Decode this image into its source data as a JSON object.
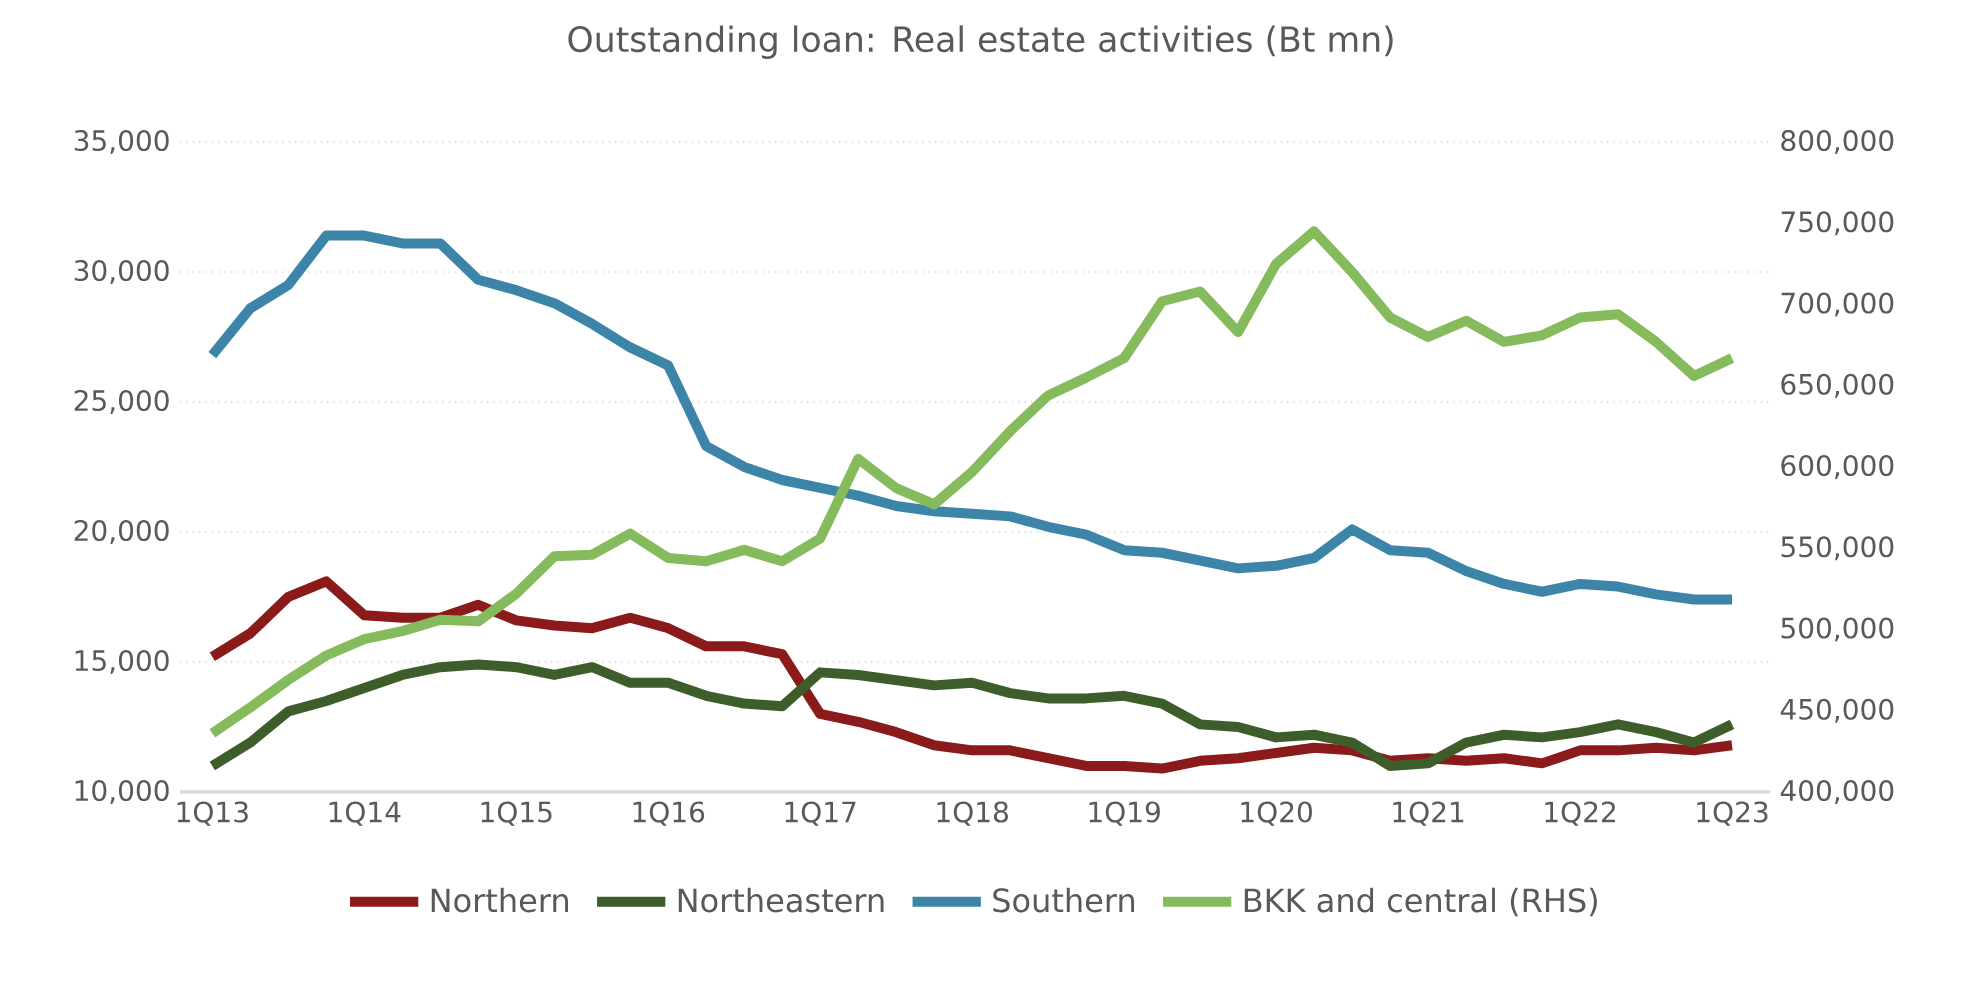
{
  "chart_data": {
    "type": "line",
    "title": "Outstanding loan: Real estate activities (Bt mn)",
    "categories": [
      "1Q13",
      null,
      null,
      null,
      "1Q14",
      null,
      null,
      null,
      "1Q15",
      null,
      null,
      null,
      "1Q16",
      null,
      null,
      null,
      "1Q17",
      null,
      null,
      null,
      "1Q18",
      null,
      null,
      null,
      "1Q19",
      null,
      null,
      null,
      "1Q20",
      null,
      null,
      null,
      "1Q21",
      null,
      null,
      null,
      "1Q22",
      null,
      null,
      null,
      "1Q23"
    ],
    "series": [
      {
        "name": "Northern",
        "color": "#8b1a1a",
        "values": [
          15200,
          16100,
          17500,
          18100,
          16800,
          16700,
          16700,
          17200,
          16600,
          16400,
          16300,
          16700,
          16300,
          15600,
          15600,
          15300,
          13000,
          12700,
          12300,
          11800,
          11600,
          11600,
          11300,
          11000,
          11000,
          10900,
          11200,
          11300,
          11500,
          11700,
          11600,
          11200,
          11300,
          11200,
          11300,
          11100,
          11600,
          11600,
          11700,
          11600,
          11800
        ]
      },
      {
        "name": "Northeastern",
        "color": "#3d5e2a",
        "values": [
          11000,
          11900,
          13100,
          13500,
          14000,
          14500,
          14800,
          14900,
          14800,
          14500,
          14800,
          14200,
          14200,
          13700,
          13400,
          13300,
          14600,
          14500,
          14300,
          14100,
          14200,
          13800,
          13600,
          13600,
          13700,
          13400,
          12600,
          12500,
          12100,
          12200,
          11900,
          11000,
          11100,
          11900,
          12200,
          12100,
          12300,
          12600,
          12300,
          11900,
          12600
        ]
      },
      {
        "name": "Southern",
        "color": "#3c85a9",
        "values": [
          26800,
          28600,
          29500,
          31400,
          31400,
          31100,
          31100,
          29700,
          29300,
          28800,
          28000,
          27100,
          26400,
          23300,
          22500,
          22000,
          21700,
          21400,
          21000,
          20800,
          20700,
          20600,
          20200,
          19900,
          19300,
          19200,
          18900,
          18600,
          18700,
          19000,
          20100,
          19300,
          19200,
          18500,
          18000,
          17700,
          18000,
          17900,
          17600,
          17400,
          17400
        ]
      },
      {
        "name": "BKK and central (RHS)",
        "color": "#86bb5d",
        "axis": "y2",
        "values": [
          436000,
          452000,
          469000,
          484000,
          494000,
          499000,
          506000,
          505000,
          522000,
          545000,
          546000,
          559000,
          544000,
          542000,
          549000,
          542000,
          556000,
          605000,
          587000,
          577000,
          597000,
          622000,
          644000,
          655000,
          667000,
          702000,
          708000,
          683000,
          725000,
          745000,
          720000,
          692000,
          680000,
          690000,
          677000,
          681000,
          692000,
          694000,
          677000,
          656000,
          667000
        ]
      }
    ],
    "ylim": [
      10000,
      35000
    ],
    "yticks": [
      {
        "value": 10000,
        "label": "10,000"
      },
      {
        "value": 15000,
        "label": "15,000"
      },
      {
        "value": 20000,
        "label": "20,000"
      },
      {
        "value": 25000,
        "label": "25,000"
      },
      {
        "value": 30000,
        "label": "30,000"
      },
      {
        "value": 35000,
        "label": "35,000"
      }
    ],
    "y2lim": [
      400000,
      800000
    ],
    "y2ticks": [
      {
        "value": 400000,
        "label": "400,000"
      },
      {
        "value": 450000,
        "label": "450,000"
      },
      {
        "value": 500000,
        "label": "500,000"
      },
      {
        "value": 550000,
        "label": "550,000"
      },
      {
        "value": 600000,
        "label": "600,000"
      },
      {
        "value": 650000,
        "label": "650,000"
      },
      {
        "value": 700000,
        "label": "700,000"
      },
      {
        "value": 750000,
        "label": "750,000"
      },
      {
        "value": 800000,
        "label": "800,000"
      }
    ],
    "grid": "y",
    "legend": "bottom",
    "line_style": "solid"
  }
}
